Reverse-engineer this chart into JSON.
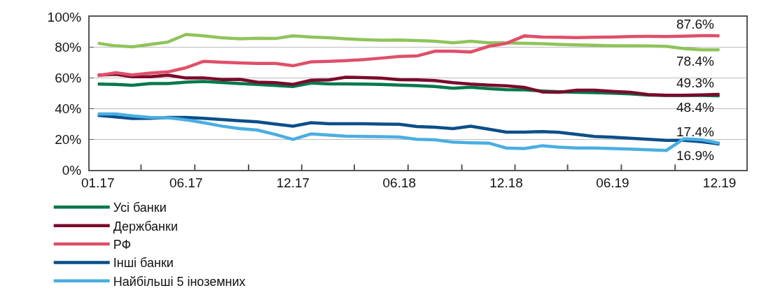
{
  "chart_data": {
    "type": "line",
    "x": [
      "2017-01",
      "2017-02",
      "2017-03",
      "2017-04",
      "2017-05",
      "2017-06",
      "2017-07",
      "2017-08",
      "2017-09",
      "2017-10",
      "2017-11",
      "2017-12",
      "2018-01",
      "2018-02",
      "2018-03",
      "2018-04",
      "2018-05",
      "2018-06",
      "2018-07",
      "2018-08",
      "2018-09",
      "2018-10",
      "2018-11",
      "2018-12",
      "2019-01",
      "2019-02",
      "2019-03",
      "2019-04",
      "2019-05",
      "2019-06",
      "2019-07",
      "2019-08",
      "2019-09",
      "2019-10",
      "2019-11",
      "2019-12"
    ],
    "series": [
      {
        "name": "Усі банки",
        "color": "#00784a",
        "values": [
          56,
          55.8,
          55.3,
          56.4,
          56.4,
          57.3,
          57.8,
          57.1,
          56.4,
          55.8,
          55.1,
          54.5,
          56.7,
          56.2,
          56.2,
          56,
          55.8,
          55.4,
          55,
          54.4,
          53.3,
          54,
          53.1,
          52.4,
          52.3,
          51.5,
          51,
          50.7,
          50.5,
          50.1,
          49.7,
          48.9,
          48.6,
          48.6,
          48.6,
          48.4
        ]
      },
      {
        "color": "#8fc45a",
        "values": [
          82.7,
          81,
          80.4,
          82,
          83.5,
          88.5,
          87.6,
          86.3,
          85.6,
          86,
          85.8,
          87.6,
          86.8,
          86.3,
          85.6,
          85.1,
          84.7,
          84.8,
          84.5,
          84,
          83,
          84,
          83,
          83,
          82.6,
          82.4,
          82,
          81.6,
          81.4,
          81.1,
          81,
          80.9,
          80.7,
          79.2,
          78.4,
          78.4
        ]
      },
      {
        "name": "Держбанки",
        "color": "#7a0b2c",
        "values": [
          61.9,
          62.4,
          60.9,
          60.9,
          61.9,
          60,
          60.1,
          59,
          59.1,
          57.3,
          57,
          55.8,
          58.6,
          58.8,
          60.5,
          60.3,
          59.9,
          58.9,
          58.8,
          58.3,
          57,
          56,
          55.4,
          54.9,
          53.9,
          50.9,
          50.7,
          52,
          52,
          51.3,
          50.7,
          49.2,
          48.8,
          48.8,
          49,
          49.3
        ]
      },
      {
        "name": "РФ",
        "color": "#e04f68",
        "values": [
          61.5,
          63.5,
          62,
          63.2,
          64,
          66.7,
          70.9,
          70.3,
          69.9,
          69.5,
          69.5,
          68,
          70.5,
          70.9,
          71.4,
          72,
          73,
          74.1,
          74.4,
          77.5,
          77.5,
          77,
          80.7,
          82.6,
          87.5,
          86.8,
          86.6,
          86.4,
          86.6,
          86.8,
          87.1,
          87.2,
          87.1,
          87.3,
          87.7,
          87.6
        ]
      },
      {
        "name": "Інші банки",
        "color": "#0b4f8a",
        "values": [
          35.6,
          34.6,
          33.6,
          33.7,
          34.2,
          34.2,
          33.7,
          32.9,
          32.1,
          31.4,
          29.9,
          28.6,
          30.8,
          30.1,
          30.1,
          30.1,
          29.9,
          29.8,
          28.3,
          27.9,
          27,
          28.5,
          26.6,
          24.7,
          24.7,
          25,
          24.5,
          23.2,
          21.8,
          21.3,
          20.7,
          20,
          19.3,
          19.3,
          18.4,
          16.9
        ]
      },
      {
        "name": "Найбільші 5 іноземних",
        "color": "#4aaee2",
        "values": [
          36.5,
          36.5,
          35.3,
          34.2,
          34,
          32.7,
          30.8,
          28.6,
          26.9,
          26,
          23.1,
          19.9,
          23.5,
          22.7,
          22,
          21.8,
          21.7,
          21.5,
          20,
          19.6,
          18.1,
          17.7,
          17.5,
          14.3,
          13.9,
          15.8,
          14.8,
          14.3,
          14.3,
          13.9,
          13.6,
          13.1,
          12.7,
          20.3,
          19.6,
          17.4
        ]
      }
    ],
    "xlim": [
      "2016-12-18",
      "2020-01-16"
    ],
    "xticks": [
      {
        "value": "2017-01",
        "label": "01.17"
      },
      {
        "value": "2017-03-16",
        "label": null
      },
      {
        "value": "2017-06",
        "label": "06.17"
      },
      {
        "value": "2017-06-16",
        "label": null
      },
      {
        "value": "2017-09-16",
        "label": null
      },
      {
        "value": "2017-12",
        "label": "12.17"
      },
      {
        "value": "2017-12-16",
        "label": null
      },
      {
        "value": "2018-03-16",
        "label": null
      },
      {
        "value": "2018-06",
        "label": "06.18"
      },
      {
        "value": "2018-06-16",
        "label": null
      },
      {
        "value": "2018-09-16",
        "label": null
      },
      {
        "value": "2018-12",
        "label": "12.18"
      },
      {
        "value": "2018-12-16",
        "label": null
      },
      {
        "value": "2019-03-16",
        "label": null
      },
      {
        "value": "2019-06",
        "label": "06.19"
      },
      {
        "value": "2019-06-16",
        "label": null
      },
      {
        "value": "2019-09-16",
        "label": null
      },
      {
        "value": "2019-12",
        "label": "12.19"
      }
    ],
    "ylim": [
      0,
      100
    ],
    "yticks": [
      {
        "value": 0,
        "label": "0%"
      },
      {
        "value": 20,
        "label": "20%"
      },
      {
        "value": 40,
        "label": "40%"
      },
      {
        "value": 60,
        "label": "60%"
      },
      {
        "value": 80,
        "label": "80%"
      },
      {
        "value": 100,
        "label": "100%"
      }
    ],
    "annotations": [
      {
        "text": "87.6%",
        "x": "2019-12",
        "y": 87.6
      },
      {
        "text": "78.4%",
        "x": "2019-12",
        "y": 78.4
      },
      {
        "text": "49.3%",
        "x": "2019-12",
        "y": 49.3
      },
      {
        "text": "48.4%",
        "x": "2019-12",
        "y": 48.4
      },
      {
        "text": "16.9%",
        "x": "2019-12",
        "y": 16.9
      },
      {
        "text": "17.4%",
        "x": "2019-12",
        "y": 17.4
      }
    ],
    "grid": "y",
    "legend": "bottom",
    "marker": "none",
    "line_style": "solid"
  }
}
